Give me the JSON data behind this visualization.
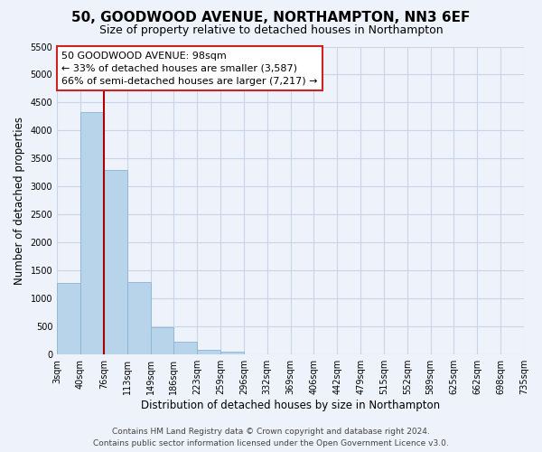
{
  "title": "50, GOODWOOD AVENUE, NORTHAMPTON, NN3 6EF",
  "subtitle": "Size of property relative to detached houses in Northampton",
  "xlabel": "Distribution of detached houses by size in Northampton",
  "ylabel": "Number of detached properties",
  "bar_values": [
    1270,
    4330,
    3290,
    1290,
    480,
    230,
    80,
    50,
    0,
    0,
    0,
    0,
    0,
    0,
    0,
    0,
    0,
    0,
    0,
    0
  ],
  "bar_labels": [
    "3sqm",
    "40sqm",
    "76sqm",
    "113sqm",
    "149sqm",
    "186sqm",
    "223sqm",
    "259sqm",
    "296sqm",
    "332sqm",
    "369sqm",
    "406sqm",
    "442sqm",
    "479sqm",
    "515sqm",
    "552sqm",
    "589sqm",
    "625sqm",
    "662sqm",
    "698sqm",
    "735sqm"
  ],
  "bar_color": "#b8d4ea",
  "bar_edge_color": "#8ab4d4",
  "grid_color": "#c8d4e8",
  "background_color": "#eef2fa",
  "vline_color": "#aa0000",
  "annotation_box_text": "50 GOODWOOD AVENUE: 98sqm\n← 33% of detached houses are smaller (3,587)\n66% of semi-detached houses are larger (7,217) →",
  "ylim": [
    0,
    5500
  ],
  "yticks": [
    0,
    500,
    1000,
    1500,
    2000,
    2500,
    3000,
    3500,
    4000,
    4500,
    5000,
    5500
  ],
  "footer_line1": "Contains HM Land Registry data © Crown copyright and database right 2024.",
  "footer_line2": "Contains public sector information licensed under the Open Government Licence v3.0.",
  "title_fontsize": 11,
  "subtitle_fontsize": 9,
  "xlabel_fontsize": 8.5,
  "ylabel_fontsize": 8.5,
  "tick_fontsize": 7,
  "annot_fontsize": 8,
  "footer_fontsize": 6.5
}
